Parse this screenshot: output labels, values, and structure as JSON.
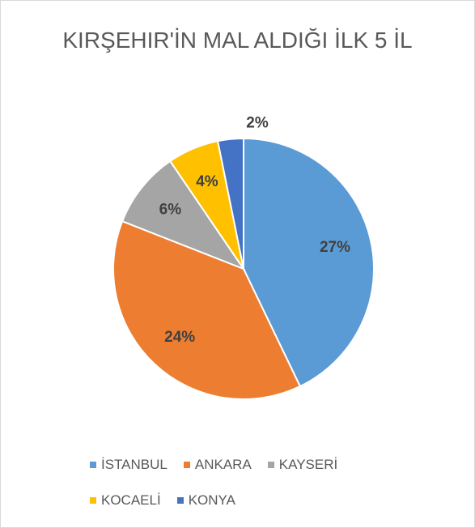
{
  "chart_data": {
    "type": "pie",
    "title": "KIRŞEHIR'İN MAL ALDIĞI İLK 5 İL",
    "categories": [
      "İSTANBUL",
      "ANKARA",
      "KAYSERİ",
      "KOCAELİ",
      "KONYA"
    ],
    "values": [
      27,
      24,
      6,
      4,
      2
    ],
    "value_labels": [
      "27%",
      "24%",
      "6%",
      "4%",
      "2%"
    ],
    "colors": [
      "#5b9bd5",
      "#ed7d31",
      "#a5a5a5",
      "#ffc000",
      "#4472c4"
    ],
    "legend": "bottom"
  }
}
